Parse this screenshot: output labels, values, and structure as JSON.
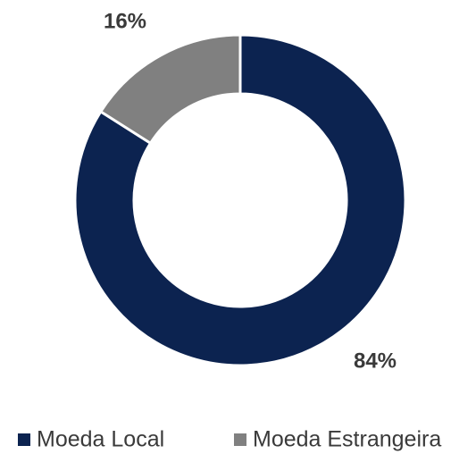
{
  "chart_data": {
    "type": "pie",
    "donut": true,
    "categories": [
      "Moeda Local",
      "Moeda Estrangeira"
    ],
    "values": [
      84,
      16
    ],
    "value_labels": [
      "84%",
      "16%"
    ],
    "colors": [
      "#0c2350",
      "#808080"
    ],
    "legend": "bottom"
  }
}
